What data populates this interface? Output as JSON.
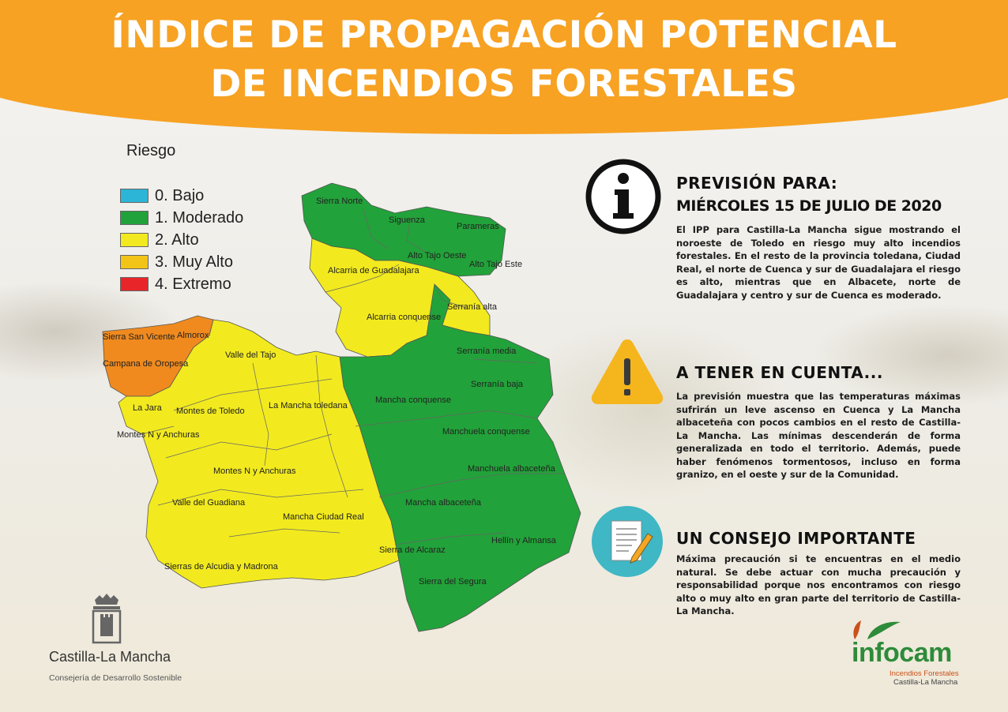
{
  "header": {
    "title_line1": "ÍNDICE DE PROPAGACIÓN POTENCIAL",
    "title_line2": "DE INCENDIOS FORESTALES",
    "banner_color": "#f7a223"
  },
  "legend": {
    "title": "Riesgo",
    "items": [
      {
        "label": "0. Bajo",
        "color": "#2cb5d6"
      },
      {
        "label": "1. Moderado",
        "color": "#22a23a"
      },
      {
        "label": "2. Alto",
        "color": "#f2ea1e"
      },
      {
        "label": "3. Muy Alto",
        "color": "#f2c418"
      },
      {
        "label": "4. Extremo",
        "color": "#e8262a"
      }
    ]
  },
  "map": {
    "regions": [
      {
        "name": "Sierra Norte",
        "risk": 1
      },
      {
        "name": "Siguenza",
        "risk": 1
      },
      {
        "name": "Parameras",
        "risk": 1
      },
      {
        "name": "Alto Tajo Oeste",
        "risk": 1
      },
      {
        "name": "Alto Tajo Este",
        "risk": 1
      },
      {
        "name": "Alcarria de Guadalajara",
        "risk": 2
      },
      {
        "name": "Serranía alta",
        "risk": 2
      },
      {
        "name": "Alcarria conquense",
        "risk": 2
      },
      {
        "name": "Serranía media",
        "risk": 1
      },
      {
        "name": "Serranía baja",
        "risk": 1
      },
      {
        "name": "Mancha conquense",
        "risk": 1
      },
      {
        "name": "Manchuela conquense",
        "risk": 1
      },
      {
        "name": "Manchuela albaceteña",
        "risk": 1
      },
      {
        "name": "Mancha albaceteña",
        "risk": 1
      },
      {
        "name": "Hellín y Almansa",
        "risk": 1
      },
      {
        "name": "Sierra de Alcaraz",
        "risk": 1
      },
      {
        "name": "Sierra del Segura",
        "risk": 1
      },
      {
        "name": "Sierra San Vicente",
        "risk": 3
      },
      {
        "name": "Almorox",
        "risk": 3
      },
      {
        "name": "Campana de Oropesa",
        "risk": 3
      },
      {
        "name": "Valle del Tajo",
        "risk": 2
      },
      {
        "name": "La Jara",
        "risk": 2
      },
      {
        "name": "Montes de Toledo",
        "risk": 2
      },
      {
        "name": "La Mancha toledana",
        "risk": 2
      },
      {
        "name": "Montes N y Anchuras",
        "risk": 2
      },
      {
        "name": "Valle del Guadiana",
        "risk": 2
      },
      {
        "name": "Mancha Ciudad Real",
        "risk": 2
      },
      {
        "name": "Sierras de Alcudia y Madrona",
        "risk": 2
      }
    ],
    "orange_color": "#f08a1e",
    "yellow_color": "#f2ea1e",
    "green_color": "#22a23a"
  },
  "forecast": {
    "title_line1": "PREVISIÓN PARA:",
    "title_line2": "MIÉRCOLES 15 DE JULIO DE 2020",
    "text": "El IPP para Castilla-La Mancha sigue mostrando el noroeste de Toledo en riesgo muy alto incendios forestales. En el resto de la provincia toledana, Ciudad Real, el norte de Cuenca y sur de Guadalajara el riesgo es alto, mientras que en Albacete, norte de Guadalajara y centro y sur de Cuenca es moderado.",
    "icon": "info-icon"
  },
  "notice": {
    "title": "A TENER EN CUENTA...",
    "text": "La previsión muestra que las temperaturas máximas sufrirán un leve ascenso en Cuenca y La Mancha albaceteña con pocos cambios en el resto de Castilla-La Mancha. Las mínimas descenderán de forma generalizada en todo el territorio. Además, puede haber fenómenos tormentosos, incluso en forma granizo, en el oeste y sur de la Comunidad.",
    "icon": "warning-icon",
    "icon_color": "#f5b51c"
  },
  "advice": {
    "title": "UN CONSEJO IMPORTANTE",
    "text": "Máxima precaución si te encuentras en el medio natural. Se debe actuar con mucha precaución y responsabilidad porque nos encontramos con riesgo alto o muy alto en gran parte del territorio de Castilla-La Mancha.",
    "icon": "document-pencil-icon",
    "icon_color": "#3fb7c4"
  },
  "footer": {
    "clm_name": "Castilla-La Mancha",
    "clm_dept": "Consejería de Desarrollo Sostenible",
    "infocam_name": "infocam",
    "infocam_sub1": "Incendios Forestales",
    "infocam_sub2": "Castilla-La Mancha"
  }
}
